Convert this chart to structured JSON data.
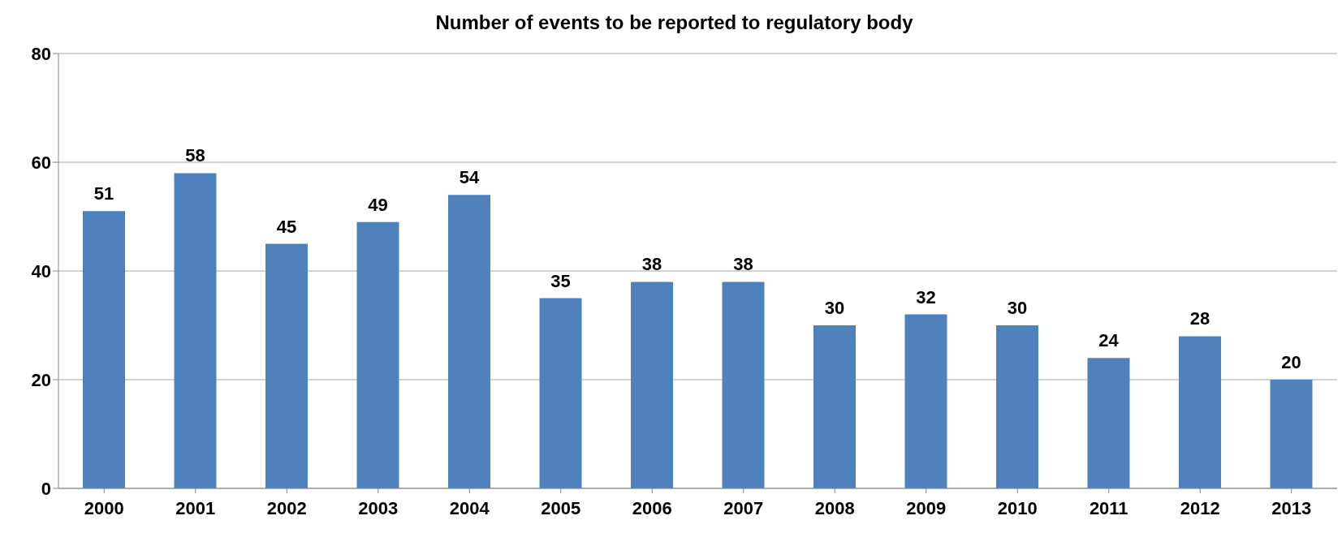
{
  "chart_data": {
    "type": "bar",
    "title": "Number of events to be reported to regulatory body",
    "categories": [
      "2000",
      "2001",
      "2002",
      "2003",
      "2004",
      "2005",
      "2006",
      "2007",
      "2008",
      "2009",
      "2010",
      "2011",
      "2012",
      "2013"
    ],
    "values": [
      51,
      58,
      45,
      49,
      54,
      35,
      38,
      38,
      30,
      32,
      30,
      24,
      28,
      20
    ],
    "color": "#4f81bd",
    "ylim": [
      0,
      80
    ],
    "yticks": [
      0,
      20,
      40,
      60,
      80
    ],
    "grid": "y",
    "data_labels": true
  }
}
